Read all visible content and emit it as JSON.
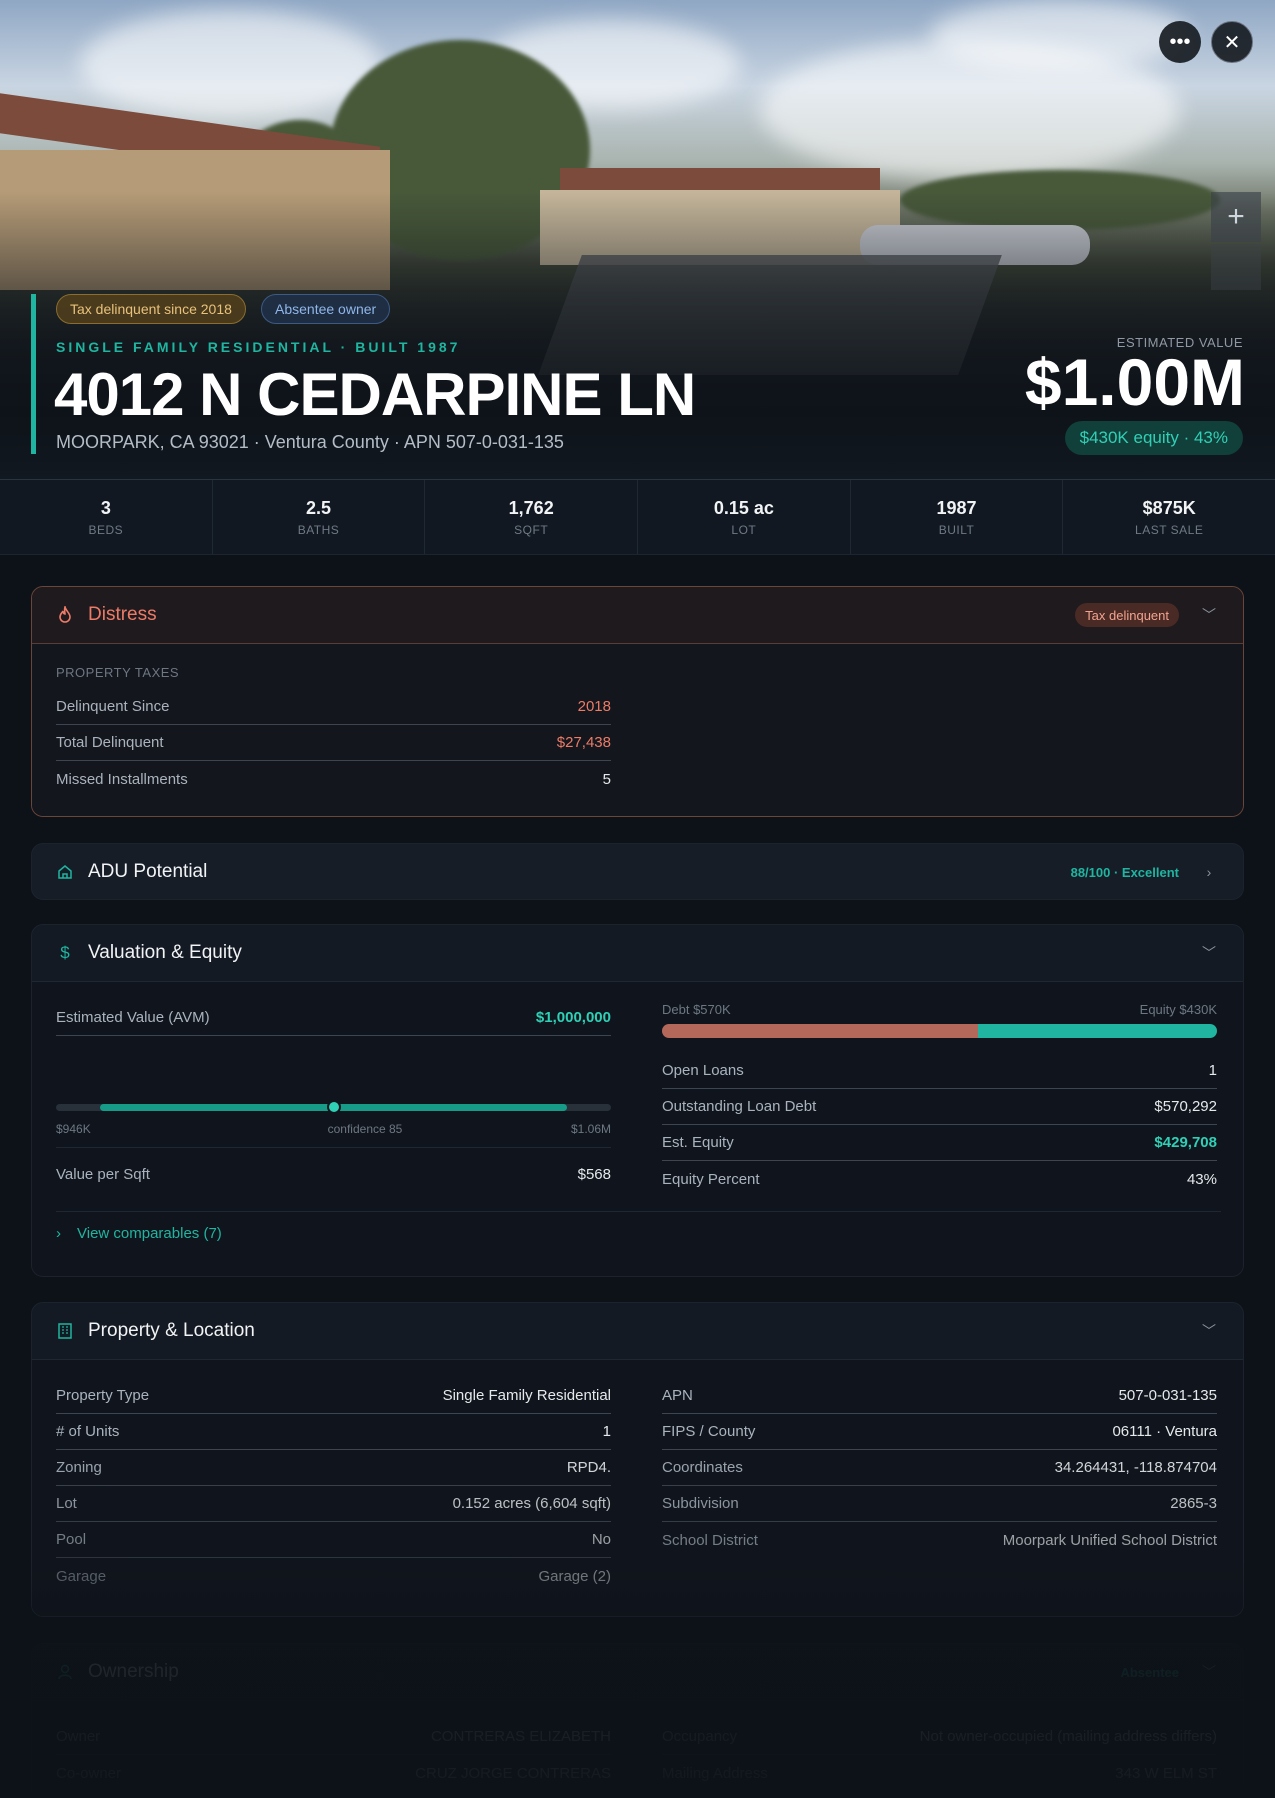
{
  "hero": {
    "badges": {
      "tax": "Tax delinquent since 2018",
      "absentee": "Absentee owner"
    },
    "subtitle": "SINGLE FAMILY RESIDENTIAL · BUILT 1987",
    "title": "4012 N CEDARPINE LN",
    "location": "MOORPARK, CA 93021 · Ventura County · APN 507-0-031-135",
    "estimated_label": "ESTIMATED VALUE",
    "estimated_value": "$1.00M",
    "equity_pill": "$430K equity · 43%",
    "more_icon": "more-horizontal-icon",
    "close_icon": "close-icon",
    "zoom_icon": "plus-icon"
  },
  "stats": [
    {
      "value": "3",
      "label": "BEDS"
    },
    {
      "value": "2.5",
      "label": "BATHS"
    },
    {
      "value": "1,762",
      "label": "SQFT"
    },
    {
      "value": "0.15 ac",
      "label": "LOT"
    },
    {
      "value": "1987",
      "label": "BUILT"
    },
    {
      "value": "$875K",
      "label": "LAST SALE"
    }
  ],
  "distress": {
    "title": "Distress",
    "tag": "Tax delinquent",
    "section_label": "PROPERTY TAXES",
    "rows": [
      {
        "key": "Delinquent Since",
        "value": "2018"
      },
      {
        "key": "Total Delinquent",
        "value": "$27,438"
      },
      {
        "key": "Missed Installments",
        "value": "5"
      }
    ]
  },
  "adu": {
    "title": "ADU Potential",
    "score": "88/100 · Excellent"
  },
  "valuation": {
    "title": "Valuation & Equity",
    "avm_key": "Estimated Value (AVM)",
    "avm_value": "$1,000,000",
    "range_low": "$946K",
    "confidence": "confidence 85",
    "range_high": "$1.06M",
    "avm_range_fraction": {
      "low": 0.08,
      "high": 0.92,
      "point": 0.5
    },
    "value_per_sqft_key": "Value per Sqft",
    "value_per_sqft": "$568",
    "debt_label": "Debt $570K",
    "equity_label": "Equity $430K",
    "debt_fraction": 0.57,
    "rows": [
      {
        "key": "Open Loans",
        "value": "1"
      },
      {
        "key": "Outstanding Loan Debt",
        "value": "$570,292"
      },
      {
        "key": "Est. Equity",
        "value": "$429,708"
      },
      {
        "key": "Equity Percent",
        "value": "43%"
      }
    ],
    "comparables_link": "View comparables (7)"
  },
  "property": {
    "title": "Property & Location",
    "left": [
      {
        "key": "Property Type",
        "value": "Single Family Residential"
      },
      {
        "key": "# of Units",
        "value": "1"
      },
      {
        "key": "Zoning",
        "value": "RPD4."
      },
      {
        "key": "Lot",
        "value": "0.152 acres (6,604 sqft)"
      },
      {
        "key": "Pool",
        "value": "No"
      },
      {
        "key": "Garage",
        "value": "Garage (2)"
      }
    ],
    "right": [
      {
        "key": "APN",
        "value": "507-0-031-135"
      },
      {
        "key": "FIPS / County",
        "value": "06111 · Ventura"
      },
      {
        "key": "Coordinates",
        "value": "34.264431, -118.874704"
      },
      {
        "key": "Subdivision",
        "value": "2865-3"
      },
      {
        "key": "School District",
        "value": "Moorpark Unified School District"
      }
    ]
  },
  "ownership": {
    "title": "Ownership",
    "tag": "Absentee",
    "rows_left": [
      {
        "key": "Owner",
        "value": "CONTRERAS ELIZABETH"
      },
      {
        "key": "Co-owner",
        "value": "CRUZ JORGE CONTRERAS"
      }
    ],
    "rows_right": [
      {
        "key": "Occupancy",
        "value": "Not owner-occupied (mailing address differs)"
      },
      {
        "key": "Mailing Address",
        "value": "343 W ELM ST"
      }
    ]
  },
  "colors": {
    "accent": "#1fb5a0",
    "distress": "#ec7b67",
    "debt": "#b3685a"
  }
}
